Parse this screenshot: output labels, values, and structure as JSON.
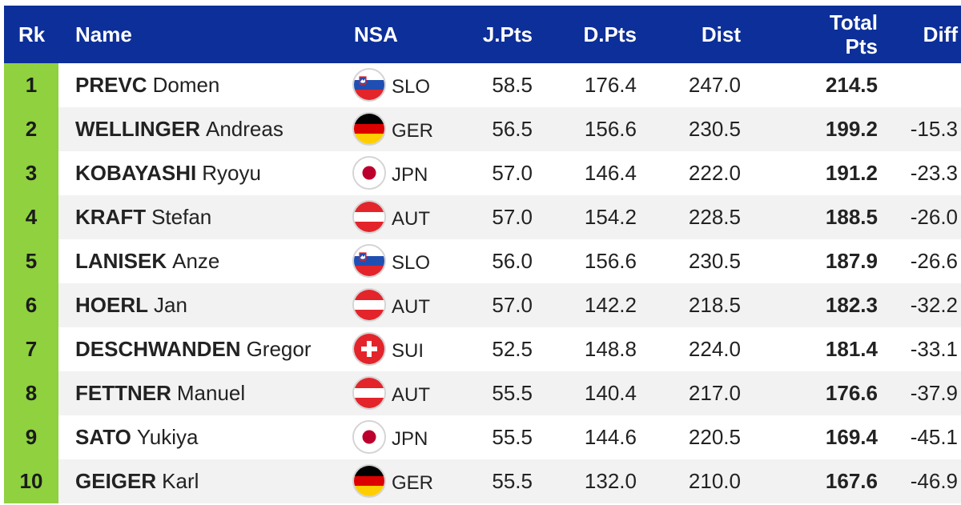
{
  "headers": {
    "rank": "Rk",
    "name": "Name",
    "nsa": "NSA",
    "jpts": "J.Pts",
    "dpts": "D.Pts",
    "dist": "Dist",
    "total_line1": "Total",
    "total_line2": "Pts",
    "diff": "Diff"
  },
  "colors": {
    "header_bg": "#0d2f99",
    "rank_bg": "#8fd13f",
    "row_alt_bg": "#f2f2f2"
  },
  "rows": [
    {
      "rank": "1",
      "last": "PREVC",
      "first": "Domen",
      "flag": "slo-flag-icon",
      "nsa": "SLO",
      "jpts": "58.5",
      "dpts": "176.4",
      "dist": "247.0",
      "total": "214.5",
      "diff": ""
    },
    {
      "rank": "2",
      "last": "WELLINGER",
      "first": "Andreas",
      "flag": "ger-flag-icon",
      "nsa": "GER",
      "jpts": "56.5",
      "dpts": "156.6",
      "dist": "230.5",
      "total": "199.2",
      "diff": "-15.3"
    },
    {
      "rank": "3",
      "last": "KOBAYASHI",
      "first": "Ryoyu",
      "flag": "jpn-flag-icon",
      "nsa": "JPN",
      "jpts": "57.0",
      "dpts": "146.4",
      "dist": "222.0",
      "total": "191.2",
      "diff": "-23.3"
    },
    {
      "rank": "4",
      "last": "KRAFT",
      "first": "Stefan",
      "flag": "aut-flag-icon",
      "nsa": "AUT",
      "jpts": "57.0",
      "dpts": "154.2",
      "dist": "228.5",
      "total": "188.5",
      "diff": "-26.0"
    },
    {
      "rank": "5",
      "last": "LANISEK",
      "first": "Anze",
      "flag": "slo-flag-icon",
      "nsa": "SLO",
      "jpts": "56.0",
      "dpts": "156.6",
      "dist": "230.5",
      "total": "187.9",
      "diff": "-26.6"
    },
    {
      "rank": "6",
      "last": "HOERL",
      "first": "Jan",
      "flag": "aut-flag-icon",
      "nsa": "AUT",
      "jpts": "57.0",
      "dpts": "142.2",
      "dist": "218.5",
      "total": "182.3",
      "diff": "-32.2"
    },
    {
      "rank": "7",
      "last": "DESCHWANDEN",
      "first": "Gregor",
      "flag": "sui-flag-icon",
      "nsa": "SUI",
      "jpts": "52.5",
      "dpts": "148.8",
      "dist": "224.0",
      "total": "181.4",
      "diff": "-33.1"
    },
    {
      "rank": "8",
      "last": "FETTNER",
      "first": "Manuel",
      "flag": "aut-flag-icon",
      "nsa": "AUT",
      "jpts": "55.5",
      "dpts": "140.4",
      "dist": "217.0",
      "total": "176.6",
      "diff": "-37.9"
    },
    {
      "rank": "9",
      "last": "SATO",
      "first": "Yukiya",
      "flag": "jpn-flag-icon",
      "nsa": "JPN",
      "jpts": "55.5",
      "dpts": "144.6",
      "dist": "220.5",
      "total": "169.4",
      "diff": "-45.1"
    },
    {
      "rank": "10",
      "last": "GEIGER",
      "first": "Karl",
      "flag": "ger-flag-icon",
      "nsa": "GER",
      "jpts": "55.5",
      "dpts": "132.0",
      "dist": "210.0",
      "total": "167.6",
      "diff": "-46.9"
    }
  ]
}
